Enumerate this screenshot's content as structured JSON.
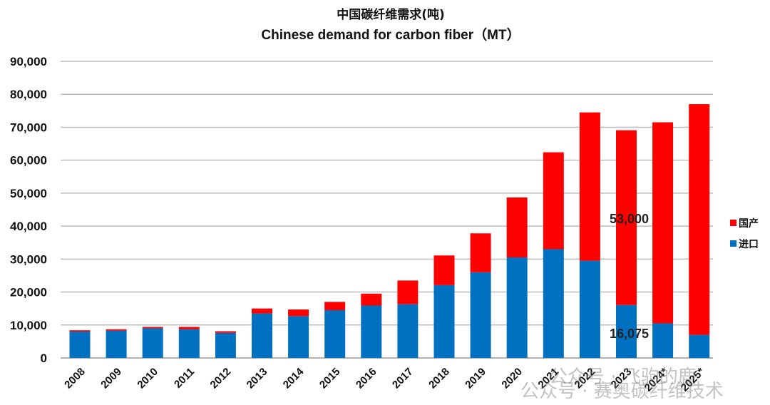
{
  "chart_data": {
    "type": "bar",
    "stacked": true,
    "title": "中国碳纤维需求(吨)",
    "subtitle": "Chinese demand for carbon fiber（MT）",
    "xlabel": "",
    "ylabel": "",
    "ylim": [
      0,
      90000
    ],
    "yticks": [
      "0",
      "10,000",
      "20,000",
      "30,000",
      "40,000",
      "50,000",
      "60,000",
      "70,000",
      "80,000",
      "90,000"
    ],
    "grid": true,
    "legend_position": "right",
    "categories": [
      "2008",
      "2009",
      "2010",
      "2011",
      "2012",
      "2013",
      "2014",
      "2015",
      "2016",
      "2017",
      "2018",
      "2019",
      "2020",
      "2021",
      "2022",
      "2023",
      "2024*",
      "2025*"
    ],
    "series": [
      {
        "name": "进口",
        "color": "#0070C0",
        "values": [
          8000,
          8300,
          9000,
          8700,
          7600,
          13500,
          12700,
          14500,
          15900,
          16300,
          22100,
          26000,
          30500,
          33000,
          29500,
          16075,
          10500,
          7000
        ]
      },
      {
        "name": "国产",
        "color": "#FF0000",
        "values": [
          400,
          400,
          400,
          700,
          500,
          1500,
          2000,
          2500,
          3600,
          7200,
          9000,
          11800,
          18200,
          29400,
          45000,
          53000,
          61000,
          70000
        ]
      }
    ],
    "annotations": [
      {
        "text": "53,000",
        "category": "2023",
        "series": "国产"
      },
      {
        "text": "16,075",
        "category": "2023",
        "series": "进口"
      }
    ]
  },
  "watermark": {
    "line1": "公众号 · 飞驹的鹿",
    "line2": "公众号 · 赛奥碳纤维技术"
  }
}
